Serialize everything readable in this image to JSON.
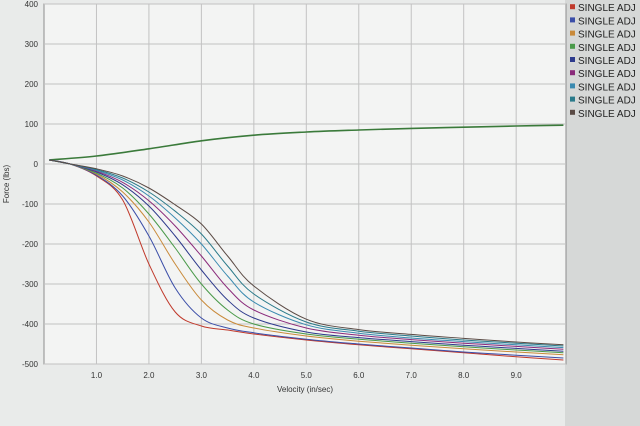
{
  "chart_data": {
    "type": "line",
    "xlabel": "Velocity (in/sec)",
    "ylabel": "Force (lbs)",
    "xlim": [
      0.0,
      9.95
    ],
    "ylim": [
      -500,
      400
    ],
    "x_ticks": [
      {
        "value": 1.0,
        "label": "1.0"
      },
      {
        "value": 2.0,
        "label": "2.0"
      },
      {
        "value": 3.0,
        "label": "3.0"
      },
      {
        "value": 4.0,
        "label": "4.0"
      },
      {
        "value": 5.0,
        "label": "5.0"
      },
      {
        "value": 6.0,
        "label": "6.0"
      },
      {
        "value": 7.0,
        "label": "7.0"
      },
      {
        "value": 8.0,
        "label": "8.0"
      },
      {
        "value": 9.0,
        "label": "9.0"
      }
    ],
    "y_ticks": [
      {
        "value": 400,
        "label": "400"
      },
      {
        "value": 300,
        "label": "300"
      },
      {
        "value": 200,
        "label": "200"
      },
      {
        "value": 100,
        "label": "100"
      },
      {
        "value": 0,
        "label": "0"
      },
      {
        "value": -100,
        "label": "-100"
      },
      {
        "value": -200,
        "label": "-200"
      },
      {
        "value": -300,
        "label": "-300"
      },
      {
        "value": -400,
        "label": "-400"
      },
      {
        "value": -500,
        "label": "-500"
      }
    ],
    "grid": true,
    "legend_position": "right",
    "series": [
      {
        "name": "SINGLE ADJ",
        "color": "#3a7a3a",
        "x": [
          0.1,
          1.0,
          2.0,
          3.0,
          4.0,
          5.0,
          6.0,
          7.0,
          8.0,
          9.0,
          9.9
        ],
        "y": [
          10,
          20,
          38,
          58,
          72,
          80,
          85,
          89,
          92,
          95,
          97
        ]
      },
      {
        "name": "SINGLE ADJ",
        "color": "#c0392b",
        "x": [
          0.1,
          0.5,
          1.0,
          1.5,
          2.0,
          2.5,
          3.0,
          3.5,
          4.0,
          5.0,
          6.0,
          7.0,
          8.0,
          9.0,
          9.9
        ],
        "y": [
          10,
          0,
          -30,
          -90,
          -250,
          -370,
          -405,
          -415,
          -425,
          -440,
          -452,
          -462,
          -472,
          -482,
          -490
        ]
      },
      {
        "name": "SINGLE ADJ",
        "color": "#3b4ea8",
        "x": [
          0.1,
          0.5,
          1.0,
          1.5,
          2.0,
          2.5,
          3.0,
          3.5,
          4.0,
          5.0,
          6.0,
          7.0,
          8.0,
          9.0,
          9.9
        ],
        "y": [
          10,
          0,
          -28,
          -80,
          -180,
          -310,
          -385,
          -410,
          -422,
          -438,
          -450,
          -460,
          -470,
          -478,
          -485
        ]
      },
      {
        "name": "SINGLE ADJ",
        "color": "#c98a3a",
        "x": [
          0.1,
          0.5,
          1.0,
          1.5,
          2.0,
          2.5,
          3.0,
          3.5,
          4.0,
          5.0,
          6.0,
          7.0,
          8.0,
          9.0,
          9.9
        ],
        "y": [
          10,
          0,
          -25,
          -70,
          -145,
          -250,
          -340,
          -390,
          -410,
          -430,
          -443,
          -453,
          -462,
          -470,
          -477
        ]
      },
      {
        "name": "SINGLE ADJ",
        "color": "#4a9a4a",
        "x": [
          0.1,
          0.5,
          1.0,
          1.5,
          2.0,
          2.5,
          3.0,
          3.5,
          4.0,
          5.0,
          6.0,
          7.0,
          8.0,
          9.0,
          9.9
        ],
        "y": [
          10,
          0,
          -23,
          -60,
          -125,
          -210,
          -300,
          -365,
          -400,
          -425,
          -438,
          -448,
          -457,
          -465,
          -472
        ]
      },
      {
        "name": "SINGLE ADJ",
        "color": "#2d3a8c",
        "x": [
          0.1,
          0.5,
          1.0,
          1.5,
          2.0,
          2.5,
          3.0,
          3.5,
          4.0,
          5.0,
          6.0,
          7.0,
          8.0,
          9.0,
          9.9
        ],
        "y": [
          10,
          0,
          -20,
          -52,
          -105,
          -180,
          -265,
          -340,
          -385,
          -420,
          -434,
          -444,
          -453,
          -461,
          -468
        ]
      },
      {
        "name": "SINGLE ADJ",
        "color": "#8a2a7a",
        "x": [
          0.1,
          0.5,
          1.0,
          1.5,
          2.0,
          2.5,
          3.0,
          3.5,
          4.0,
          5.0,
          6.0,
          7.0,
          8.0,
          9.0,
          9.9
        ],
        "y": [
          10,
          0,
          -18,
          -46,
          -92,
          -155,
          -230,
          -310,
          -365,
          -410,
          -428,
          -439,
          -448,
          -456,
          -463
        ]
      },
      {
        "name": "SINGLE ADJ",
        "color": "#3a8ab0",
        "x": [
          0.1,
          0.5,
          1.0,
          1.5,
          2.0,
          2.5,
          3.0,
          3.5,
          4.0,
          5.0,
          6.0,
          7.0,
          8.0,
          9.0,
          9.9
        ],
        "y": [
          10,
          0,
          -16,
          -40,
          -80,
          -135,
          -200,
          -280,
          -345,
          -402,
          -423,
          -435,
          -444,
          -452,
          -459
        ]
      },
      {
        "name": "SINGLE ADJ",
        "color": "#2a7a8a",
        "x": [
          0.1,
          0.5,
          1.0,
          1.5,
          2.0,
          2.5,
          3.0,
          3.5,
          4.0,
          5.0,
          6.0,
          7.0,
          8.0,
          9.0,
          9.9
        ],
        "y": [
          10,
          0,
          -14,
          -35,
          -70,
          -118,
          -175,
          -255,
          -325,
          -395,
          -418,
          -430,
          -440,
          -448,
          -455
        ]
      },
      {
        "name": "SINGLE ADJ",
        "color": "#5a4a44",
        "x": [
          0.1,
          0.5,
          1.0,
          1.5,
          2.0,
          2.5,
          3.0,
          3.5,
          4.0,
          5.0,
          6.0,
          7.0,
          8.0,
          9.0,
          9.9
        ],
        "y": [
          10,
          0,
          -12,
          -30,
          -60,
          -102,
          -150,
          -230,
          -305,
          -388,
          -414,
          -426,
          -436,
          -445,
          -452
        ]
      }
    ]
  }
}
